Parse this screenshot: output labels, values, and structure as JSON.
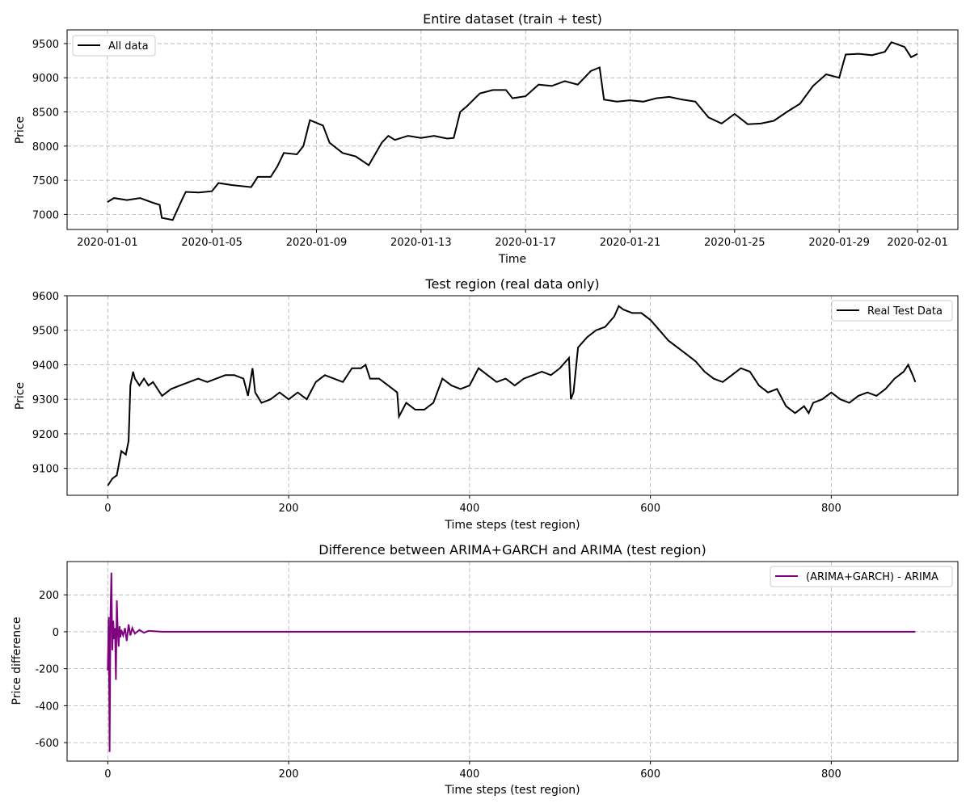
{
  "chart_data": [
    {
      "type": "line",
      "title": "Entire dataset (train + test)",
      "xlabel": "Time",
      "ylabel": "Price",
      "x_axis": "date",
      "xlim": [
        "2019-12-30T11:00",
        "2020-02-02T13:00"
      ],
      "ylim": [
        6780,
        9700
      ],
      "xtick_labels": [
        "2020-01-01",
        "2020-01-05",
        "2020-01-09",
        "2020-01-13",
        "2020-01-17",
        "2020-01-21",
        "2020-01-25",
        "2020-01-29",
        "2020-02-01"
      ],
      "ytick_labels": [
        "7000",
        "7500",
        "8000",
        "8500",
        "9000",
        "9500"
      ],
      "grid": true,
      "legend": "upper-left",
      "series": [
        {
          "name": "All data",
          "color": "#000000",
          "points": [
            [
              "2020-01-01T00:00",
              7180
            ],
            [
              "2020-01-01T06:00",
              7240
            ],
            [
              "2020-01-01T18:00",
              7210
            ],
            [
              "2020-01-02T06:00",
              7240
            ],
            [
              "2020-01-02T18:00",
              7170
            ],
            [
              "2020-01-03T00:00",
              7140
            ],
            [
              "2020-01-03T02:00",
              6950
            ],
            [
              "2020-01-03T12:00",
              6920
            ],
            [
              "2020-01-03T20:00",
              7200
            ],
            [
              "2020-01-04T00:00",
              7330
            ],
            [
              "2020-01-04T12:00",
              7320
            ],
            [
              "2020-01-05T00:00",
              7340
            ],
            [
              "2020-01-05T06:00",
              7460
            ],
            [
              "2020-01-05T18:00",
              7430
            ],
            [
              "2020-01-06T12:00",
              7400
            ],
            [
              "2020-01-06T18:00",
              7550
            ],
            [
              "2020-01-07T06:00",
              7550
            ],
            [
              "2020-01-07T12:00",
              7700
            ],
            [
              "2020-01-07T18:00",
              7900
            ],
            [
              "2020-01-08T06:00",
              7880
            ],
            [
              "2020-01-08T12:00",
              8000
            ],
            [
              "2020-01-08T18:00",
              8380
            ],
            [
              "2020-01-09T06:00",
              8300
            ],
            [
              "2020-01-09T12:00",
              8050
            ],
            [
              "2020-01-10T00:00",
              7900
            ],
            [
              "2020-01-10T12:00",
              7850
            ],
            [
              "2020-01-11T00:00",
              7720
            ],
            [
              "2020-01-11T12:00",
              8050
            ],
            [
              "2020-01-11T18:00",
              8150
            ],
            [
              "2020-01-12T00:00",
              8090
            ],
            [
              "2020-01-12T12:00",
              8150
            ],
            [
              "2020-01-13T00:00",
              8120
            ],
            [
              "2020-01-13T12:00",
              8150
            ],
            [
              "2020-01-14T00:00",
              8110
            ],
            [
              "2020-01-14T06:00",
              8120
            ],
            [
              "2020-01-14T12:00",
              8500
            ],
            [
              "2020-01-14T18:00",
              8580
            ],
            [
              "2020-01-15T06:00",
              8770
            ],
            [
              "2020-01-15T18:00",
              8820
            ],
            [
              "2020-01-16T06:00",
              8820
            ],
            [
              "2020-01-16T12:00",
              8700
            ],
            [
              "2020-01-17T00:00",
              8730
            ],
            [
              "2020-01-17T12:00",
              8900
            ],
            [
              "2020-01-18T00:00",
              8880
            ],
            [
              "2020-01-18T12:00",
              8950
            ],
            [
              "2020-01-19T00:00",
              8900
            ],
            [
              "2020-01-19T12:00",
              9100
            ],
            [
              "2020-01-19T20:00",
              9150
            ],
            [
              "2020-01-20T00:00",
              8680
            ],
            [
              "2020-01-20T12:00",
              8650
            ],
            [
              "2020-01-21T00:00",
              8670
            ],
            [
              "2020-01-21T12:00",
              8650
            ],
            [
              "2020-01-22T00:00",
              8700
            ],
            [
              "2020-01-22T12:00",
              8720
            ],
            [
              "2020-01-23T00:00",
              8680
            ],
            [
              "2020-01-23T12:00",
              8650
            ],
            [
              "2020-01-24T00:00",
              8420
            ],
            [
              "2020-01-24T12:00",
              8330
            ],
            [
              "2020-01-25T00:00",
              8470
            ],
            [
              "2020-01-25T12:00",
              8320
            ],
            [
              "2020-01-26T00:00",
              8330
            ],
            [
              "2020-01-26T12:00",
              8370
            ],
            [
              "2020-01-27T00:00",
              8500
            ],
            [
              "2020-01-27T12:00",
              8620
            ],
            [
              "2020-01-28T00:00",
              8880
            ],
            [
              "2020-01-28T12:00",
              9050
            ],
            [
              "2020-01-29T00:00",
              9000
            ],
            [
              "2020-01-29T06:00",
              9340
            ],
            [
              "2020-01-29T18:00",
              9350
            ],
            [
              "2020-01-30T06:00",
              9330
            ],
            [
              "2020-01-30T18:00",
              9380
            ],
            [
              "2020-01-31T00:00",
              9520
            ],
            [
              "2020-01-31T12:00",
              9450
            ],
            [
              "2020-01-31T18:00",
              9300
            ],
            [
              "2020-02-01T00:00",
              9350
            ]
          ]
        }
      ]
    },
    {
      "type": "line",
      "title": "Test region (real data only)",
      "xlabel": "Time steps (test region)",
      "ylabel": "Price",
      "xlim": [
        -45,
        940
      ],
      "ylim": [
        9022,
        9600
      ],
      "xticks": [
        0,
        200,
        400,
        600,
        800
      ],
      "yticks": [
        9100,
        9200,
        9300,
        9400,
        9500,
        9600
      ],
      "grid": true,
      "legend": "upper-right",
      "series": [
        {
          "name": "Real Test Data",
          "color": "#000000",
          "x": [
            0,
            5,
            10,
            15,
            20,
            23,
            25,
            28,
            30,
            35,
            40,
            45,
            50,
            60,
            70,
            80,
            90,
            100,
            110,
            120,
            130,
            140,
            150,
            155,
            160,
            163,
            170,
            180,
            190,
            200,
            210,
            220,
            230,
            240,
            250,
            260,
            270,
            280,
            285,
            290,
            300,
            310,
            320,
            322,
            330,
            340,
            350,
            360,
            370,
            380,
            390,
            400,
            410,
            420,
            430,
            440,
            450,
            460,
            470,
            480,
            490,
            500,
            510,
            512,
            515,
            520,
            530,
            540,
            550,
            560,
            565,
            570,
            580,
            590,
            600,
            610,
            620,
            630,
            640,
            650,
            660,
            670,
            680,
            690,
            700,
            710,
            720,
            730,
            740,
            750,
            760,
            770,
            775,
            780,
            790,
            800,
            810,
            820,
            830,
            840,
            850,
            860,
            870,
            880,
            885,
            890,
            893
          ],
          "y": [
            9050,
            9070,
            9080,
            9150,
            9140,
            9180,
            9340,
            9380,
            9360,
            9340,
            9360,
            9340,
            9350,
            9310,
            9330,
            9340,
            9350,
            9360,
            9350,
            9360,
            9370,
            9370,
            9360,
            9310,
            9390,
            9320,
            9290,
            9300,
            9320,
            9300,
            9320,
            9300,
            9350,
            9370,
            9360,
            9350,
            9390,
            9390,
            9400,
            9360,
            9360,
            9340,
            9320,
            9250,
            9290,
            9270,
            9270,
            9290,
            9360,
            9340,
            9330,
            9340,
            9390,
            9370,
            9350,
            9360,
            9340,
            9360,
            9370,
            9380,
            9370,
            9390,
            9420,
            9300,
            9320,
            9450,
            9480,
            9500,
            9510,
            9540,
            9570,
            9560,
            9550,
            9550,
            9530,
            9500,
            9470,
            9450,
            9430,
            9410,
            9380,
            9360,
            9350,
            9370,
            9390,
            9380,
            9340,
            9320,
            9330,
            9280,
            9260,
            9280,
            9260,
            9290,
            9300,
            9320,
            9300,
            9290,
            9310,
            9320,
            9310,
            9330,
            9360,
            9380,
            9400,
            9370,
            9350
          ]
        }
      ]
    },
    {
      "type": "line",
      "title": "Difference between ARIMA+GARCH and ARIMA (test region)",
      "xlabel": "Time steps (test region)",
      "ylabel": "Price difference",
      "xlim": [
        -45,
        940
      ],
      "ylim": [
        -700,
        380
      ],
      "xticks": [
        0,
        200,
        400,
        600,
        800
      ],
      "yticks": [
        -600,
        -400,
        -200,
        0,
        200
      ],
      "grid": true,
      "legend": "upper-right",
      "series": [
        {
          "name": "(ARIMA+GARCH) - ARIMA",
          "color": "#800080",
          "x": [
            0,
            1,
            2,
            3,
            4,
            5,
            6,
            7,
            8,
            9,
            10,
            11,
            12,
            13,
            14,
            15,
            17,
            19,
            21,
            23,
            25,
            27,
            30,
            35,
            40,
            45,
            60,
            100,
            200,
            300,
            400,
            500,
            600,
            700,
            800,
            893
          ],
          "y": [
            -210,
            80,
            -650,
            90,
            320,
            -100,
            60,
            -40,
            20,
            -260,
            170,
            0,
            -80,
            30,
            -30,
            10,
            -20,
            20,
            -50,
            40,
            -20,
            20,
            -10,
            10,
            -5,
            5,
            0,
            0,
            0,
            0,
            0,
            0,
            0,
            0,
            0,
            0
          ]
        }
      ]
    }
  ]
}
